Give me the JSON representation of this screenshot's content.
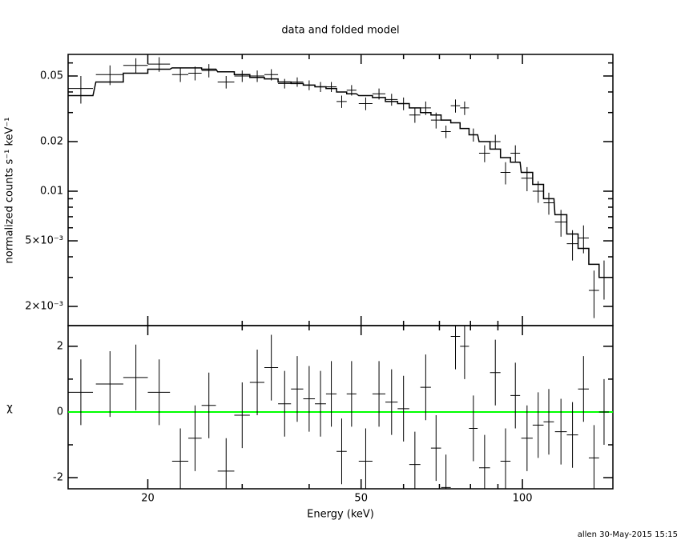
{
  "chart_data": [
    {
      "type": "errorbar",
      "title": "data and folded model",
      "ylabel": "normalized counts s⁻¹ keV⁻¹",
      "xlog": true,
      "ylog": true,
      "xlim": [
        14.2,
        147.5
      ],
      "ylim": [
        0.00153,
        0.0676
      ],
      "yticks": [
        0.05,
        0.02,
        0.01,
        {
          "value": 0.005,
          "label": "5×10⁻³"
        },
        {
          "value": 0.002,
          "label": "2×10⁻³"
        }
      ],
      "yminorticks": [
        0.06,
        0.04,
        0.03,
        0.009,
        0.008,
        0.007,
        0.006,
        0.004,
        0.003
      ],
      "x": [
        15,
        17,
        19,
        21,
        23,
        24.5,
        26,
        28,
        30,
        32,
        34,
        36,
        38,
        40,
        42,
        44,
        46,
        48,
        51,
        54,
        57,
        60,
        63,
        66,
        69,
        72,
        75,
        78,
        81,
        85,
        89,
        93,
        97,
        102,
        107,
        112,
        118,
        124,
        130,
        136,
        142
      ],
      "xerr": [
        0.8,
        1.0,
        1.0,
        1.0,
        0.8,
        0.7,
        0.8,
        1.0,
        1.0,
        1.0,
        1.0,
        1.0,
        1.0,
        1.0,
        1.0,
        1.0,
        1.0,
        1.0,
        1.5,
        1.5,
        1.5,
        1.5,
        1.5,
        1.5,
        1.5,
        1.5,
        1.5,
        1.5,
        1.5,
        2.0,
        2.0,
        2.0,
        2.0,
        2.5,
        2.5,
        2.5,
        3.0,
        3.0,
        3.0,
        3.0,
        3.0
      ],
      "series": [
        {
          "name": "data",
          "color": "#000000",
          "values": [
            0.042,
            0.051,
            0.058,
            0.059,
            0.051,
            0.052,
            0.054,
            0.046,
            0.05,
            0.05,
            0.051,
            0.045,
            0.046,
            0.044,
            0.043,
            0.043,
            0.035,
            0.041,
            0.034,
            0.039,
            0.036,
            0.034,
            0.029,
            0.032,
            0.027,
            0.023,
            0.033,
            0.032,
            0.022,
            0.017,
            0.02,
            0.013,
            0.017,
            0.012,
            0.01,
            0.0085,
            0.0065,
            0.0048,
            0.0052,
            0.0025,
            0.003
          ],
          "yerr": [
            0.008,
            0.007,
            0.006,
            0.006,
            0.005,
            0.005,
            0.005,
            0.004,
            0.004,
            0.004,
            0.004,
            0.003,
            0.003,
            0.003,
            0.003,
            0.003,
            0.003,
            0.003,
            0.003,
            0.003,
            0.003,
            0.003,
            0.003,
            0.003,
            0.003,
            0.002,
            0.003,
            0.003,
            0.002,
            0.002,
            0.002,
            0.002,
            0.002,
            0.002,
            0.0015,
            0.0013,
            0.0012,
            0.001,
            0.001,
            0.0008,
            0.0008
          ]
        },
        {
          "name": "model",
          "color": "#000000",
          "step": true,
          "values": [
            0.038,
            0.046,
            0.052,
            0.055,
            0.056,
            0.056,
            0.055,
            0.053,
            0.051,
            0.049,
            0.048,
            0.046,
            0.045,
            0.044,
            0.043,
            0.042,
            0.04,
            0.039,
            0.038,
            0.037,
            0.035,
            0.034,
            0.032,
            0.03,
            0.029,
            0.027,
            0.026,
            0.024,
            0.022,
            0.02,
            0.018,
            0.016,
            0.015,
            0.013,
            0.011,
            0.009,
            0.0072,
            0.0055,
            0.0045,
            0.0036,
            0.003
          ]
        }
      ]
    },
    {
      "type": "residual",
      "xlabel": "Energy (keV)",
      "ylabel": "χ",
      "xlog": true,
      "xlim": [
        14.2,
        147.5
      ],
      "ylim": [
        -2.34,
        2.63
      ],
      "xticks": [
        20,
        50,
        100
      ],
      "xminorticks": [
        30,
        40,
        60,
        70,
        80,
        90
      ],
      "yticks": [
        2,
        0,
        -2
      ],
      "yminorticks": [
        1,
        -1
      ],
      "hline": 0,
      "hline_color": "#00ff00",
      "x": [
        15,
        17,
        19,
        21,
        23,
        24.5,
        26,
        28,
        30,
        32,
        34,
        36,
        38,
        40,
        42,
        44,
        46,
        48,
        51,
        54,
        57,
        60,
        63,
        66,
        69,
        72,
        75,
        78,
        81,
        85,
        89,
        93,
        97,
        102,
        107,
        112,
        118,
        124,
        130,
        136,
        142
      ],
      "xerr": [
        0.8,
        1.0,
        1.0,
        1.0,
        0.8,
        0.7,
        0.8,
        1.0,
        1.0,
        1.0,
        1.0,
        1.0,
        1.0,
        1.0,
        1.0,
        1.0,
        1.0,
        1.0,
        1.5,
        1.5,
        1.5,
        1.5,
        1.5,
        1.5,
        1.5,
        1.5,
        1.5,
        1.5,
        1.5,
        2.0,
        2.0,
        2.0,
        2.0,
        2.5,
        2.5,
        2.5,
        3.0,
        3.0,
        3.0,
        3.0,
        3.0
      ],
      "series": [
        {
          "name": "residuals",
          "color": "#000000",
          "values": [
            0.6,
            0.85,
            1.05,
            0.6,
            -1.5,
            -0.8,
            0.2,
            -1.8,
            -0.1,
            0.9,
            1.35,
            0.25,
            0.7,
            0.4,
            0.25,
            0.55,
            -1.2,
            0.55,
            -1.5,
            0.55,
            0.3,
            0.1,
            -1.6,
            0.75,
            -1.1,
            -2.3,
            2.3,
            2.0,
            -0.5,
            -1.7,
            1.2,
            -1.5,
            0.5,
            -0.8,
            -0.4,
            -0.3,
            -0.6,
            -0.7,
            0.7,
            -1.4,
            0.0
          ],
          "yerr": [
            1,
            1,
            1,
            1,
            1,
            1,
            1,
            1,
            1,
            1,
            1,
            1,
            1,
            1,
            1,
            1,
            1,
            1,
            1,
            1,
            1,
            1,
            1,
            1,
            1,
            1,
            1,
            1,
            1,
            1,
            1,
            1,
            1,
            1,
            1,
            1,
            1,
            1,
            1,
            1,
            1
          ]
        }
      ]
    }
  ],
  "footer": "allen 30-May-2015 15:15"
}
